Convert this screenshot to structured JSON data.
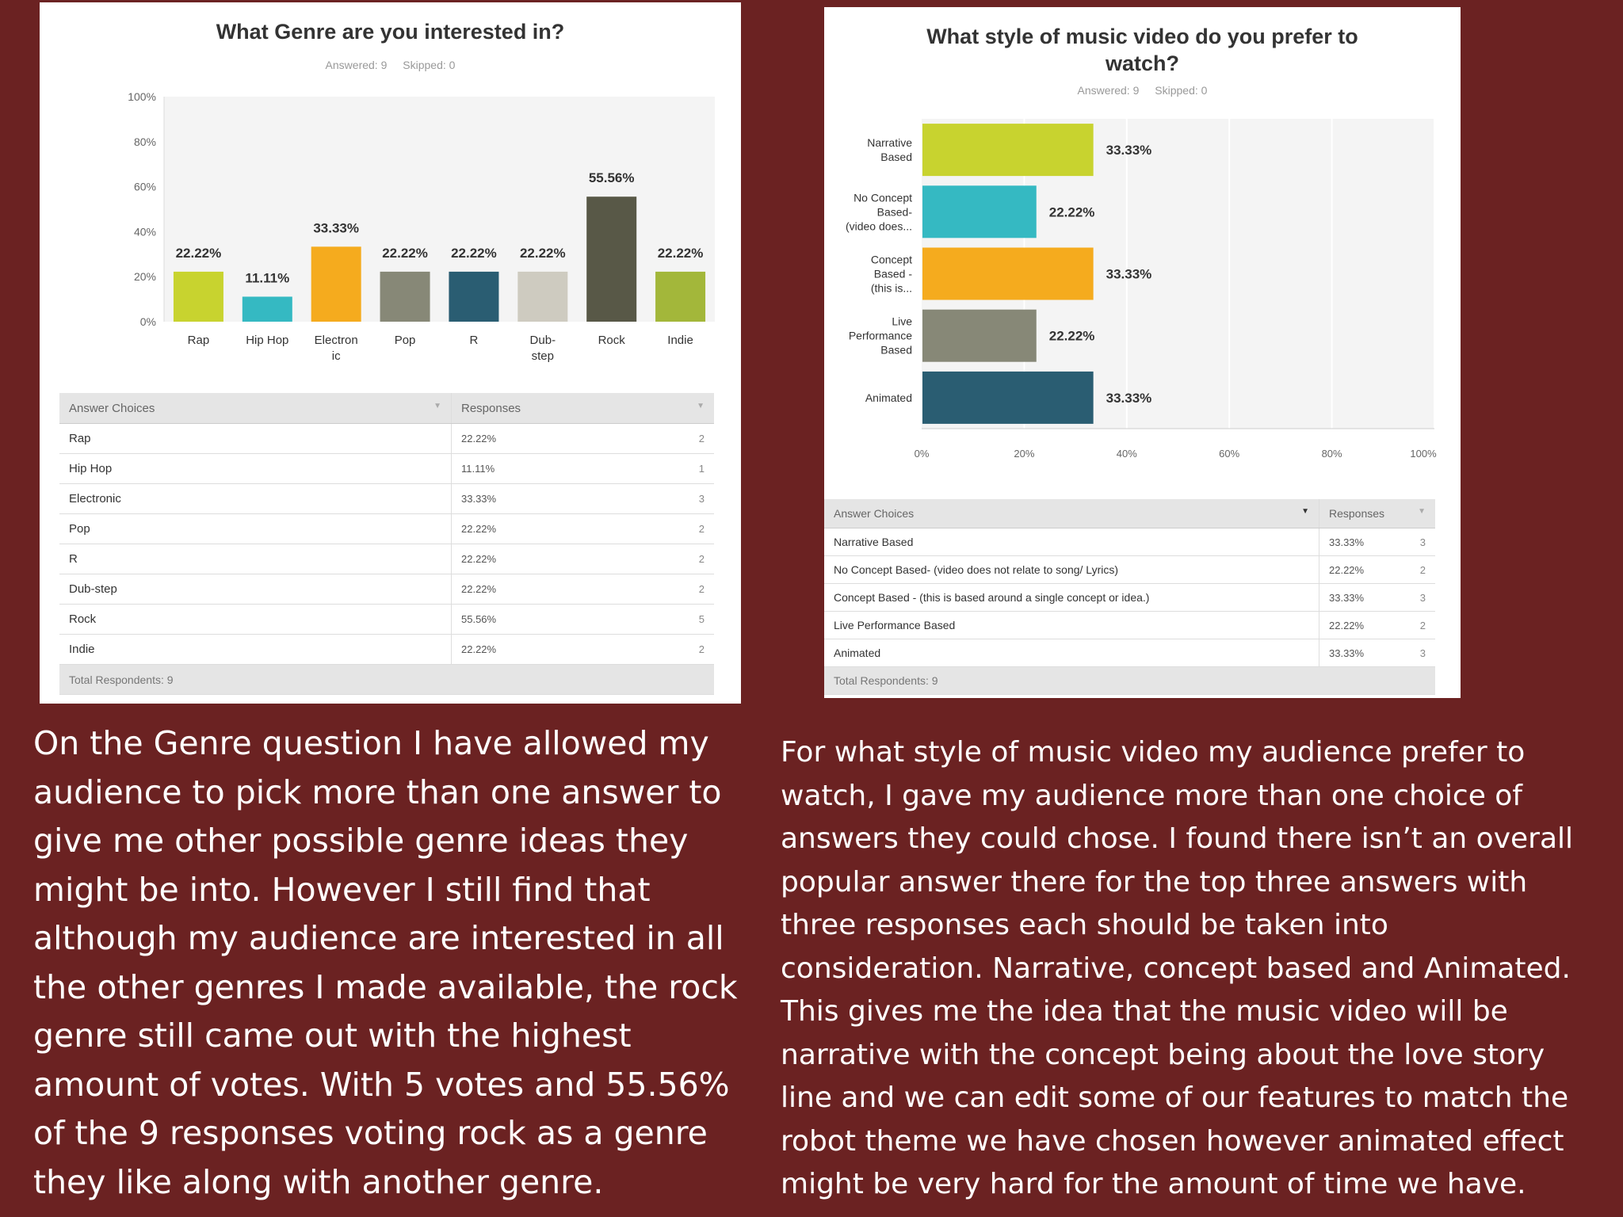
{
  "chart_data": [
    {
      "type": "bar",
      "title": "What Genre are you interested in?",
      "answered": "Answered: 9",
      "skipped": "Skipped: 0",
      "categories": [
        [
          "Rap"
        ],
        [
          "Hip Hop"
        ],
        [
          "Electron",
          "ic"
        ],
        [
          "Pop"
        ],
        [
          "R"
        ],
        [
          "Dub-",
          "step"
        ],
        [
          "Rock"
        ],
        [
          "Indie"
        ]
      ],
      "values": [
        22.22,
        11.11,
        33.33,
        22.22,
        22.22,
        22.22,
        55.56,
        22.22
      ],
      "labels": [
        "22.22%",
        "11.11%",
        "33.33%",
        "22.22%",
        "22.22%",
        "22.22%",
        "55.56%",
        "22.22%"
      ],
      "colors": [
        "#c8d32f",
        "#35b9c2",
        "#f5ab1e",
        "#878877",
        "#2a5d72",
        "#cecbc0",
        "#585847",
        "#a3b73a"
      ],
      "yticks": [
        "0%",
        "20%",
        "40%",
        "60%",
        "80%",
        "100%"
      ],
      "ylim": [
        0,
        100
      ],
      "grid": false,
      "table": {
        "col1": "Answer Choices",
        "col2": "Responses",
        "rows": [
          {
            "choice": "Rap",
            "pct": "22.22%",
            "count": "2"
          },
          {
            "choice": "Hip Hop",
            "pct": "11.11%",
            "count": "1"
          },
          {
            "choice": "Electronic",
            "pct": "33.33%",
            "count": "3"
          },
          {
            "choice": "Pop",
            "pct": "22.22%",
            "count": "2"
          },
          {
            "choice": "R",
            "pct": "22.22%",
            "count": "2"
          },
          {
            "choice": "Dub-step",
            "pct": "22.22%",
            "count": "2"
          },
          {
            "choice": "Rock",
            "pct": "55.56%",
            "count": "5"
          },
          {
            "choice": "Indie",
            "pct": "22.22%",
            "count": "2"
          }
        ],
        "total": "Total Respondents: 9"
      }
    },
    {
      "type": "bar",
      "orientation": "horizontal",
      "title_lines": [
        "What style of music video do you prefer to",
        "watch?"
      ],
      "answered": "Answered: 9",
      "skipped": "Skipped: 0",
      "categories": [
        [
          "Narrative",
          "Based"
        ],
        [
          "No Concept",
          "Based-",
          "(video does..."
        ],
        [
          "Concept",
          "Based -",
          "(this is..."
        ],
        [
          "Live",
          "Performance",
          "Based"
        ],
        [
          "Animated"
        ]
      ],
      "values": [
        33.33,
        22.22,
        33.33,
        22.22,
        33.33
      ],
      "labels": [
        "33.33%",
        "22.22%",
        "33.33%",
        "22.22%",
        "33.33%"
      ],
      "colors": [
        "#c8d32f",
        "#35b9c2",
        "#f5ab1e",
        "#878877",
        "#2a5d72"
      ],
      "xticks": [
        "0%",
        "20%",
        "40%",
        "60%",
        "80%",
        "100%"
      ],
      "xlim": [
        0,
        100
      ],
      "grid": true,
      "table": {
        "col1": "Answer Choices",
        "col2": "Responses",
        "rows": [
          {
            "choice": "Narrative Based",
            "pct": "33.33%",
            "count": "3"
          },
          {
            "choice": "No Concept Based- (video does not relate to song/ Lyrics)",
            "pct": "22.22%",
            "count": "2"
          },
          {
            "choice": "Concept Based - (this is based around a single concept or idea.)",
            "pct": "33.33%",
            "count": "3"
          },
          {
            "choice": "Live Performance Based",
            "pct": "22.22%",
            "count": "2"
          },
          {
            "choice": "Animated",
            "pct": "33.33%",
            "count": "3"
          }
        ],
        "total": "Total Respondents: 9"
      }
    }
  ],
  "text_left": [
    "On the Genre question I have allowed my",
    "audience to pick more than one answer to",
    "give me other possible genre ideas they",
    "might be into. However I still find that",
    "although my audience are interested in all",
    "the other genres I made available, the rock",
    "genre still came out with the highest",
    "amount of votes. With 5 votes and 55.56%",
    "of the 9 responses voting rock as a genre",
    "they like along with another genre."
  ],
  "text_right": [
    "For what style of music video my audience prefer to",
    "watch, I gave my audience more than one choice of",
    "answers they could chose. I found there isn’t an overall",
    "popular answer there for the top three answers with",
    "three responses each should be taken into",
    "consideration. Narrative, concept based and Animated.",
    "This gives me the idea that the music video will be",
    "narrative with the concept being about the love story",
    "line and we can edit some of our features to match the",
    "robot theme we have chosen however animated effect",
    "might be very hard for the amount of time we have."
  ]
}
